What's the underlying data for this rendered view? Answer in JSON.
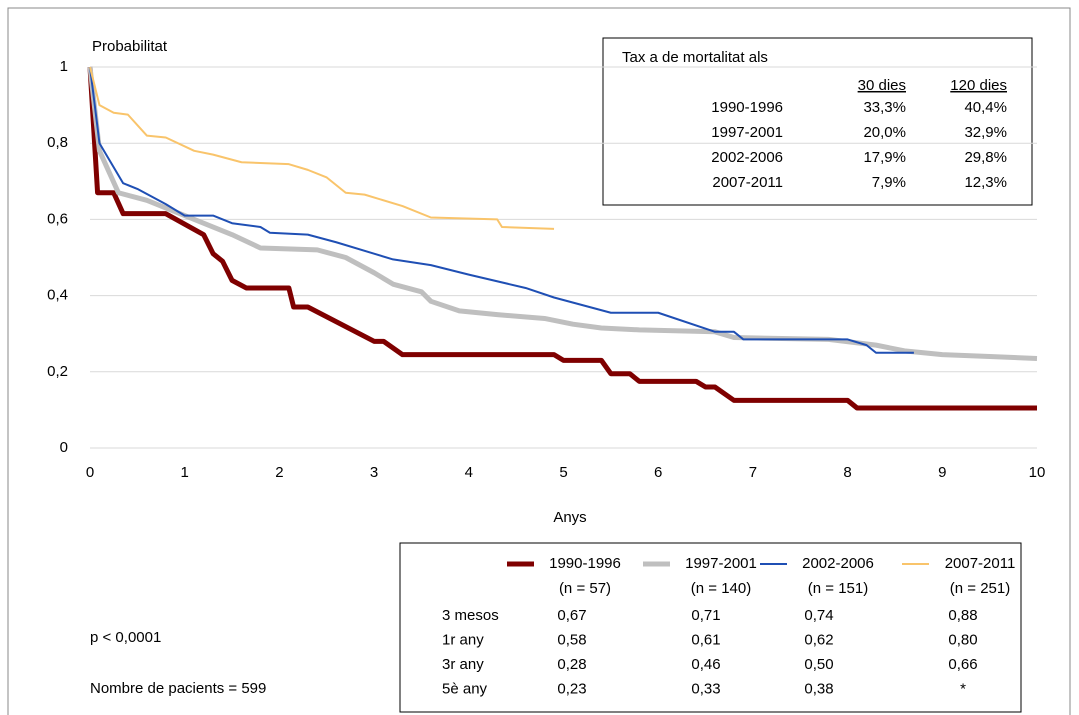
{
  "chart_data": {
    "type": "line",
    "ylabel": "Probabilitat",
    "xlabel": "Anys",
    "xlim": [
      0,
      10
    ],
    "ylim": [
      0,
      1
    ],
    "xticks": [
      0,
      1,
      2,
      3,
      4,
      5,
      6,
      7,
      8,
      9,
      10
    ],
    "yticks": [
      0,
      {
        "value": 0.2,
        "label": "0,2"
      },
      {
        "value": 0.4,
        "label": "0,4"
      },
      {
        "value": 0.6,
        "label": "0,6"
      },
      {
        "value": 0.8,
        "label": "0,8"
      },
      1
    ],
    "grid": true,
    "series": [
      {
        "name": "1990-1996",
        "n": "(n = 57)",
        "color": "#7f0000",
        "line_width": 5,
        "x": [
          0,
          0.08,
          0.25,
          0.35,
          0.8,
          1.2,
          1.3,
          1.4,
          1.5,
          1.65,
          2.1,
          2.15,
          2.3,
          3.0,
          3.1,
          3.3,
          4.9,
          5.0,
          5.4,
          5.5,
          5.7,
          5.8,
          6.4,
          6.5,
          6.6,
          6.8,
          8.0,
          8.1,
          10
        ],
        "values": [
          1,
          0.67,
          0.67,
          0.615,
          0.615,
          0.56,
          0.51,
          0.49,
          0.44,
          0.42,
          0.42,
          0.37,
          0.37,
          0.28,
          0.28,
          0.245,
          0.245,
          0.23,
          0.23,
          0.195,
          0.195,
          0.175,
          0.175,
          0.16,
          0.16,
          0.125,
          0.125,
          0.105,
          0.105
        ]
      },
      {
        "name": "1997-2001",
        "n": "(n = 140)",
        "color": "#bfbfbf",
        "line_width": 5,
        "x": [
          0,
          0.1,
          0.3,
          0.6,
          1.0,
          1.5,
          1.8,
          2.4,
          2.7,
          3.0,
          3.2,
          3.5,
          3.6,
          3.9,
          4.3,
          4.8,
          5.1,
          5.4,
          5.8,
          6.6,
          6.8,
          7.8,
          8.3,
          8.6,
          9.0,
          9.5,
          10
        ],
        "values": [
          1,
          0.78,
          0.67,
          0.65,
          0.61,
          0.56,
          0.525,
          0.52,
          0.5,
          0.46,
          0.43,
          0.41,
          0.385,
          0.36,
          0.35,
          0.34,
          0.325,
          0.315,
          0.31,
          0.305,
          0.29,
          0.285,
          0.27,
          0.255,
          0.245,
          0.24,
          0.235
        ]
      },
      {
        "name": "2002-2006",
        "n": "(n = 151)",
        "color": "#1f4fb4",
        "line_width": 2,
        "x": [
          0,
          0.1,
          0.35,
          0.5,
          0.8,
          1.0,
          1.3,
          1.5,
          1.8,
          1.9,
          2.3,
          2.6,
          3.0,
          3.2,
          3.6,
          4.0,
          4.6,
          4.9,
          5.2,
          5.5,
          6.0,
          6.6,
          6.8,
          6.9,
          8.0,
          8.2,
          8.3,
          8.7
        ],
        "values": [
          1,
          0.8,
          0.695,
          0.68,
          0.64,
          0.61,
          0.61,
          0.59,
          0.58,
          0.565,
          0.56,
          0.54,
          0.51,
          0.495,
          0.48,
          0.455,
          0.42,
          0.395,
          0.375,
          0.355,
          0.355,
          0.305,
          0.305,
          0.285,
          0.285,
          0.27,
          0.25,
          0.25
        ]
      },
      {
        "name": "2007-2011",
        "n": "(n = 251)",
        "color": "#f9c46b",
        "line_width": 2,
        "x": [
          0,
          0.1,
          0.25,
          0.4,
          0.6,
          0.8,
          1.1,
          1.3,
          1.6,
          2.1,
          2.3,
          2.5,
          2.7,
          2.9,
          3.3,
          3.6,
          4.3,
          4.35,
          4.9
        ],
        "values": [
          1,
          0.9,
          0.88,
          0.875,
          0.82,
          0.815,
          0.78,
          0.77,
          0.75,
          0.745,
          0.73,
          0.71,
          0.67,
          0.665,
          0.635,
          0.605,
          0.6,
          0.58,
          0.575
        ]
      }
    ],
    "mortality_table": {
      "title": "Tax a de mortalitat als",
      "headers": [
        "30 dies",
        "120 dies"
      ],
      "rows": [
        [
          "1990-1996",
          "33,3%",
          "40,4%"
        ],
        [
          "1997-2001",
          "20,0%",
          "32,9%"
        ],
        [
          "2002-2006",
          "17,9%",
          "29,8%"
        ],
        [
          "2007-2011",
          "7,9%",
          "12,3%"
        ]
      ]
    },
    "survival_table": {
      "rows": [
        [
          "3 mesos",
          "0,67",
          "0,71",
          "0,74",
          "0,88"
        ],
        [
          "1r any",
          "0,58",
          "0,61",
          "0,62",
          "0,80"
        ],
        [
          "3r any",
          "0,28",
          "0,46",
          "0,50",
          "0,66"
        ],
        [
          "5è any",
          "0,23",
          "0,33",
          "0,38",
          "*"
        ]
      ]
    },
    "annotations": [
      "p < 0,0001",
      "Nombre de pacients = 599"
    ]
  }
}
